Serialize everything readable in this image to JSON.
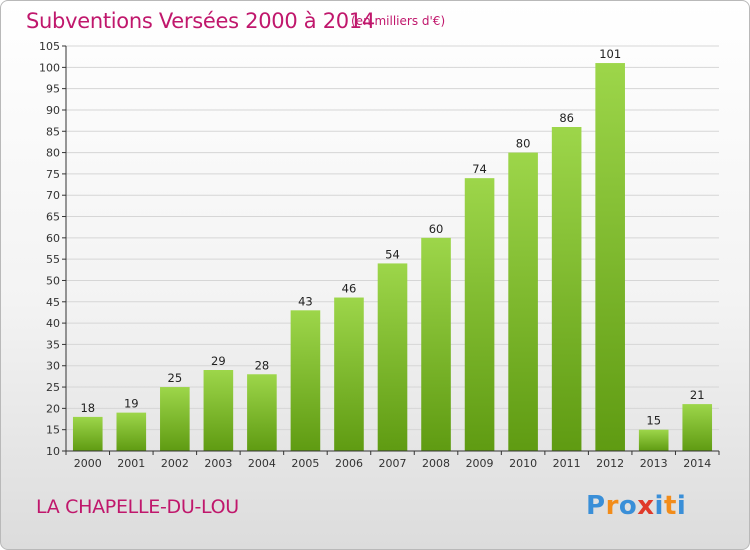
{
  "title": "Subventions Versées 2000 à 2014",
  "subtitle": "(en milliers d'€)",
  "commune": "LA CHAPELLE-DU-LOU",
  "logo": {
    "text": "Proxiti",
    "letters": [
      "P",
      "r",
      "o",
      "x",
      "i",
      "t",
      "i"
    ],
    "colors": [
      "#3a8fd8",
      "#f28c1a",
      "#3a8fd8",
      "#e03a2a",
      "#3a8fd8",
      "#f28c1a",
      "#3a8fd8"
    ]
  },
  "colors": {
    "title": "#c0176c",
    "bar_top": "#9dd64a",
    "bar_bottom": "#5f9b12",
    "grid": "#d6d6d6",
    "axis": "#333333"
  },
  "chart_data": {
    "type": "bar",
    "categories": [
      "2000",
      "2001",
      "2002",
      "2003",
      "2004",
      "2005",
      "2006",
      "2007",
      "2008",
      "2009",
      "2010",
      "2011",
      "2012",
      "2013",
      "2014"
    ],
    "values": [
      18,
      19,
      25,
      29,
      28,
      43,
      46,
      54,
      60,
      74,
      80,
      86,
      101,
      15,
      21
    ],
    "ylim": [
      10,
      105
    ],
    "yticks": [
      10,
      15,
      20,
      25,
      30,
      35,
      40,
      45,
      50,
      55,
      60,
      65,
      70,
      75,
      80,
      85,
      90,
      95,
      100,
      105
    ],
    "grid": true,
    "legend": "none"
  }
}
